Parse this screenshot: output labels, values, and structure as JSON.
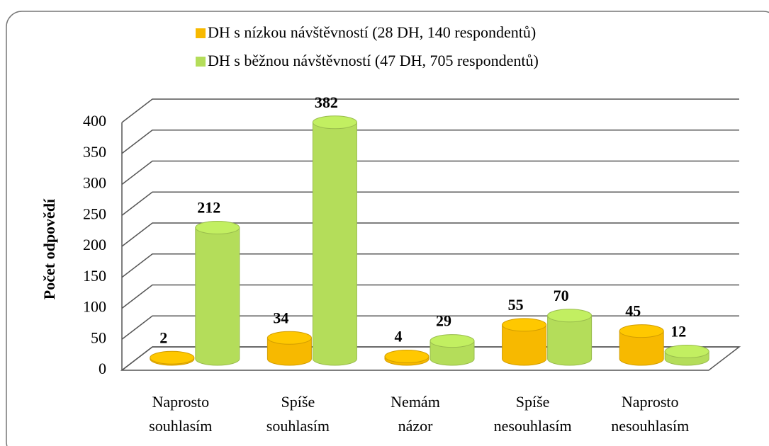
{
  "chart_data": {
    "type": "bar3d",
    "y_label": "Počet odpovědí",
    "categories": [
      "Naprosto souhlasím",
      "Spíše souhlasím",
      "Nemám názor",
      "Spíše nesouhlasím",
      "Naprosto nesouhlasím"
    ],
    "series": [
      {
        "name": "DH s nízkou návštěvností (28 DH, 140 respondentů)",
        "color": "#f7b900",
        "values": [
          2,
          34,
          4,
          55,
          45
        ]
      },
      {
        "name": "DH s běžnou návštěvností (47 DH, 705 respondentů)",
        "color": "#b4dd5a",
        "values": [
          212,
          382,
          29,
          70,
          12
        ]
      }
    ],
    "ylim": [
      0,
      400
    ],
    "yticks": [
      0,
      50,
      100,
      150,
      200,
      250,
      300,
      350,
      400
    ],
    "grid": true
  }
}
